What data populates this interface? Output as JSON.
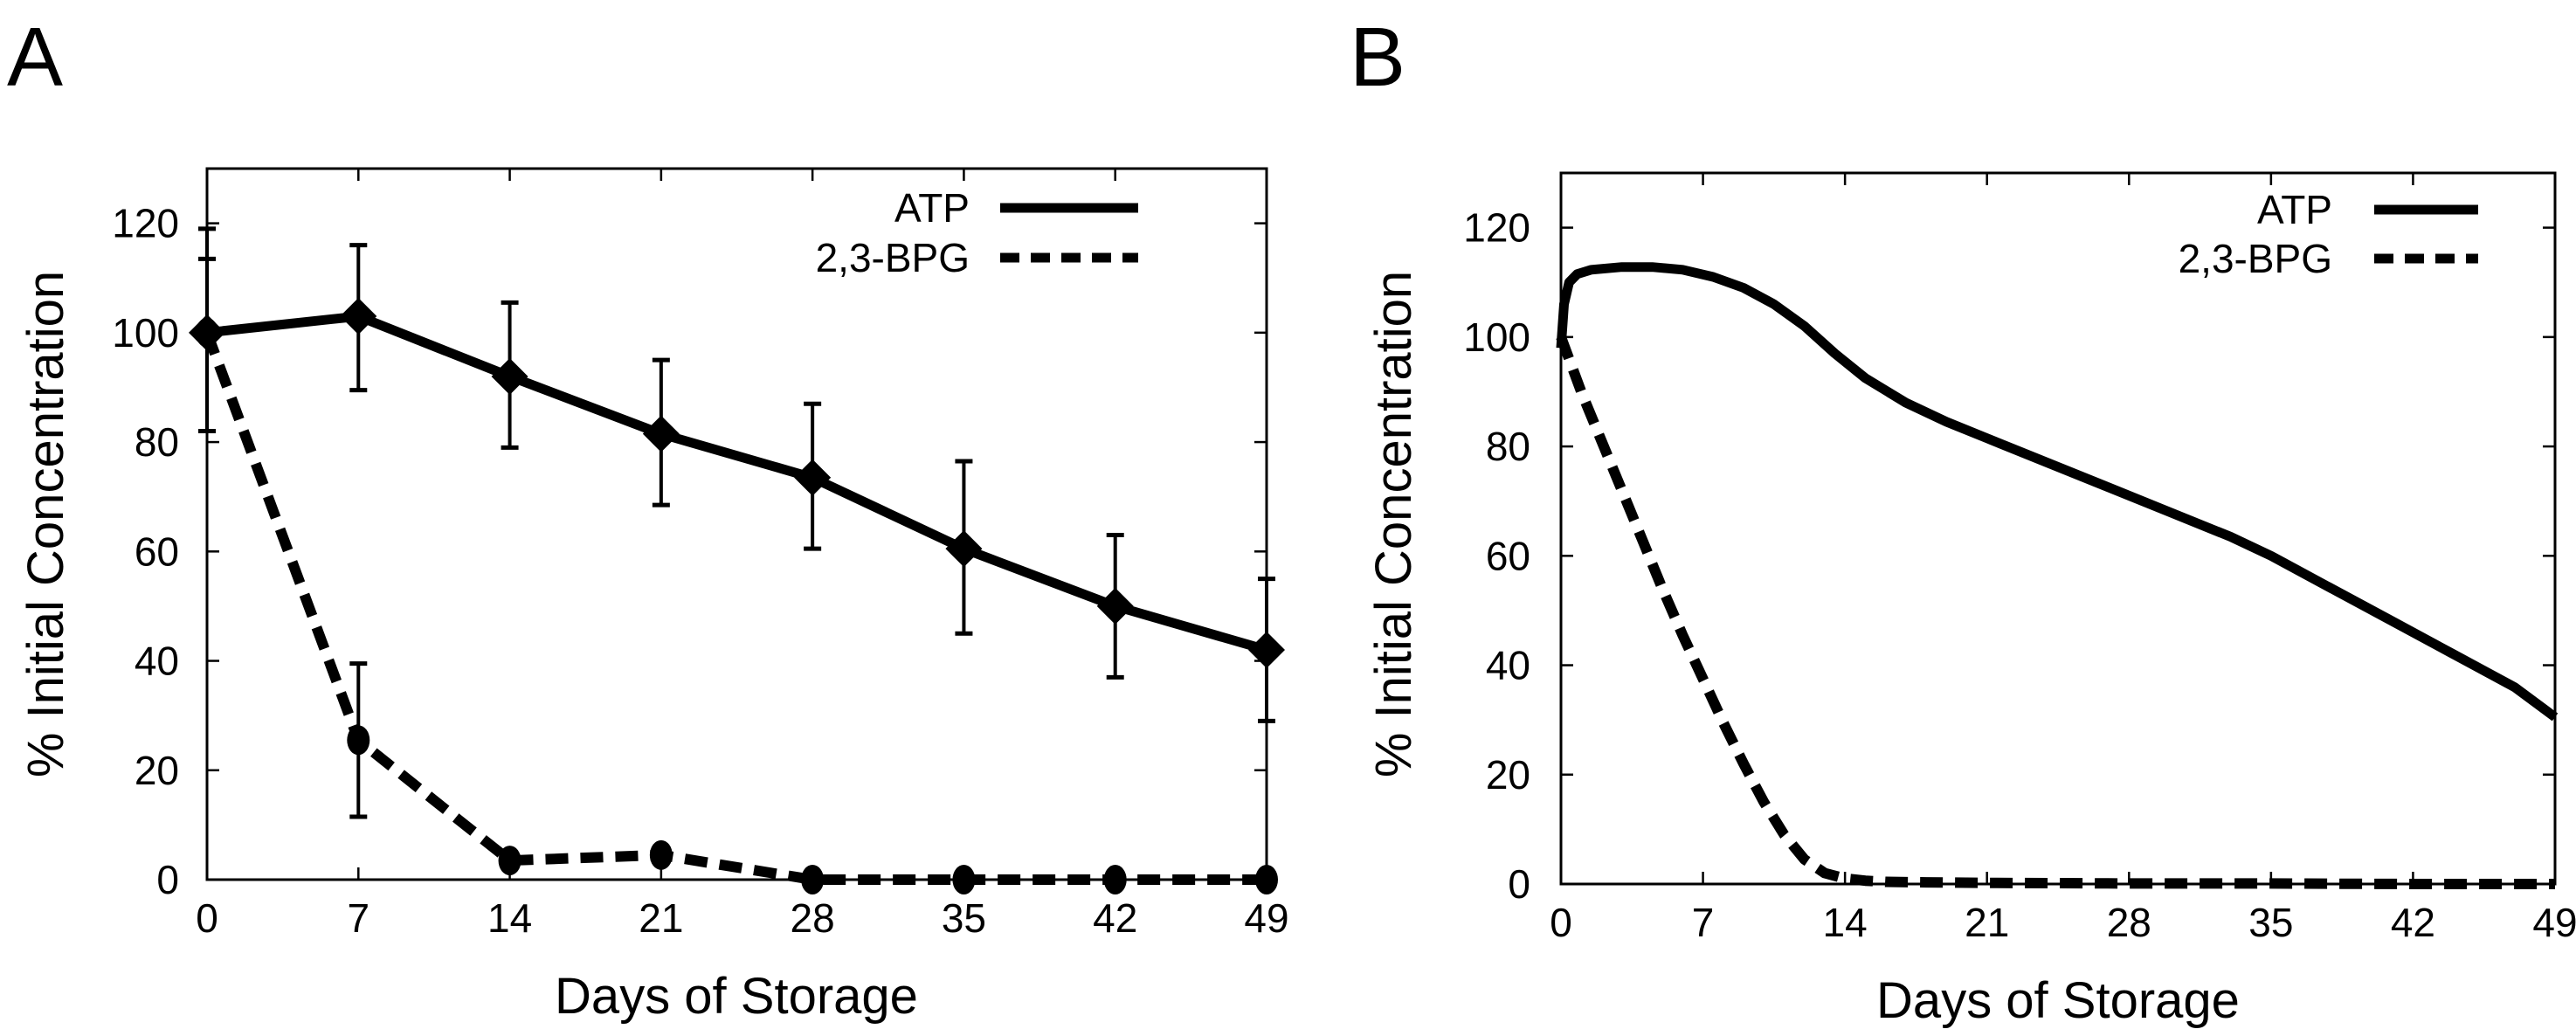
{
  "chart_data": [
    {
      "panel": "A",
      "type": "line",
      "title": "",
      "xlabel": "Days of Storage",
      "ylabel": "% Initial Concentration",
      "xlim": [
        0,
        49
      ],
      "ylim": [
        0,
        130
      ],
      "xticks": [
        0,
        7,
        14,
        21,
        28,
        35,
        42,
        49
      ],
      "yticks": [
        0,
        20,
        40,
        60,
        80,
        100,
        120
      ],
      "grid": false,
      "legend": "top-right",
      "x": [
        0,
        7,
        14,
        21,
        28,
        35,
        42,
        49
      ],
      "series": [
        {
          "name": "ATP",
          "style": "solid",
          "marker": "diamond",
          "values": [
            100,
            103,
            92,
            81.5,
            73.5,
            60.5,
            50,
            42
          ],
          "error_low": [
            82,
            89.5,
            79,
            68.5,
            60.5,
            45,
            37,
            29
          ],
          "error_high": [
            119,
            116,
            105.5,
            95,
            87,
            76.5,
            63,
            55
          ]
        },
        {
          "name": "2,3-BPG",
          "style": "dashed",
          "marker": "circle",
          "values": [
            100,
            25.5,
            3.5,
            4.5,
            0,
            0,
            0,
            0
          ],
          "error_low": [
            null,
            11.5,
            null,
            null,
            null,
            null,
            null,
            null
          ],
          "error_high": [
            113.5,
            39.5,
            null,
            null,
            null,
            null,
            null,
            null
          ]
        }
      ]
    },
    {
      "panel": "B",
      "type": "line",
      "title": "",
      "xlabel": "Days of Storage",
      "ylabel": "% Initial Concentration",
      "xlim": [
        0,
        49
      ],
      "ylim": [
        0,
        130
      ],
      "xticks": [
        0,
        7,
        14,
        21,
        28,
        35,
        42,
        49
      ],
      "yticks": [
        0,
        20,
        40,
        60,
        80,
        100,
        120
      ],
      "grid": false,
      "legend": "top-right",
      "series": [
        {
          "name": "ATP",
          "style": "solid",
          "x": [
            0,
            0.15,
            0.4,
            0.8,
            1.5,
            3,
            4.5,
            6,
            7.5,
            9,
            10.5,
            12,
            13.5,
            15,
            17,
            19,
            21,
            24,
            27,
            30,
            33,
            35,
            38,
            41,
            44,
            47,
            49
          ],
          "values": [
            98,
            106,
            110,
            111.5,
            112.3,
            112.8,
            112.8,
            112.3,
            111,
            109,
            106,
            102,
            97,
            92.5,
            88,
            84.5,
            81.5,
            77,
            72.5,
            68,
            63.5,
            60,
            54,
            48,
            42,
            36,
            30.5
          ]
        },
        {
          "name": "2,3-BPG",
          "style": "dashed",
          "x": [
            0,
            1,
            2,
            3,
            4,
            5,
            6,
            7,
            8,
            9,
            10,
            11,
            12,
            13,
            14,
            15,
            16,
            18,
            21,
            28,
            35,
            42,
            49
          ],
          "values": [
            100,
            90,
            81,
            72,
            63,
            54,
            45.5,
            37.5,
            29.5,
            22,
            15,
            9,
            4.5,
            2,
            1,
            0.6,
            0.4,
            0.3,
            0.2,
            0.1,
            0.1,
            0,
            0
          ]
        }
      ]
    }
  ],
  "panels": [
    {
      "label": "A",
      "xlabel": "Days of Storage",
      "ylabel": "% Initial Concentration",
      "legend": [
        {
          "label": "ATP",
          "style": "solid"
        },
        {
          "label": "2,3-BPG",
          "style": "dashed"
        }
      ]
    },
    {
      "label": "B",
      "xlabel": "Days of Storage",
      "ylabel": "% Initial Concentration",
      "legend": [
        {
          "label": "ATP",
          "style": "solid"
        },
        {
          "label": "2,3-BPG",
          "style": "dashed"
        }
      ]
    }
  ],
  "colors": {
    "line": "#000000",
    "background": "#ffffff"
  }
}
